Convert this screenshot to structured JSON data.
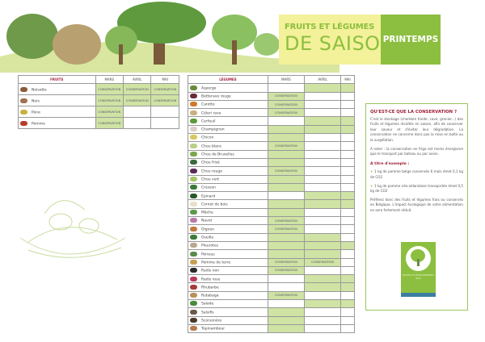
{
  "header": {
    "title_line1": "FRUITS ET LÉGUMES",
    "title_line2": "DE SAISON",
    "season": "PRINTEMPS"
  },
  "colors": {
    "accent": "#8cbf3f",
    "fill": "#cfe3a4",
    "heading": "#a0203a"
  },
  "fruits": {
    "header": [
      "FRUITS",
      "MARS",
      "AVRIL",
      "MAI"
    ],
    "rows": [
      {
        "name": "Noisette",
        "color": "#8a5a3a",
        "cells": [
          "CONSERVATION",
          "CONSERVATION",
          "CONSERVATION"
        ]
      },
      {
        "name": "Noix",
        "color": "#a07050",
        "cells": [
          "CONSERVATION",
          "CONSERVATION",
          "CONSERVATION"
        ]
      },
      {
        "name": "Poire",
        "color": "#c9b040",
        "cells": [
          "CONSERVATION",
          "",
          ""
        ]
      },
      {
        "name": "Pomme",
        "color": "#b83a2a",
        "cells": [
          "CONSERVATION",
          "",
          ""
        ]
      }
    ]
  },
  "vegetables": {
    "header": [
      "LÉGUMES",
      "MARS",
      "AVRIL",
      "MAI"
    ],
    "rows": [
      {
        "name": "Asperge",
        "color": "#6a8a3a",
        "cells": [
          "",
          "G",
          "G"
        ]
      },
      {
        "name": "Betterave rouge",
        "color": "#6a2a3a",
        "cells": [
          "CONSERVATION",
          "",
          ""
        ]
      },
      {
        "name": "Carotte",
        "color": "#d07a2a",
        "cells": [
          "CONSERVATION",
          "",
          ""
        ]
      },
      {
        "name": "Céleri rave",
        "color": "#c8b080",
        "cells": [
          "CONSERVATION",
          "",
          ""
        ]
      },
      {
        "name": "Cerfeuil",
        "color": "#5a9a3a",
        "cells": [
          "",
          "G",
          "G"
        ]
      },
      {
        "name": "Champignon",
        "color": "#d8d0c8",
        "cells": [
          "G",
          "G",
          "G"
        ]
      },
      {
        "name": "Chicon",
        "color": "#d8c860",
        "cells": [
          "G",
          "",
          ""
        ]
      },
      {
        "name": "Chou blanc",
        "color": "#b8d088",
        "cells": [
          "CONSERVATION",
          "",
          ""
        ]
      },
      {
        "name": "Chou de Bruxelles",
        "color": "#7aa84a",
        "cells": [
          "G",
          "",
          ""
        ]
      },
      {
        "name": "Chou frisé",
        "color": "#3a6a3a",
        "cells": [
          "G",
          "",
          ""
        ]
      },
      {
        "name": "Chou rouge",
        "color": "#5a2a5a",
        "cells": [
          "CONSERVATION",
          "",
          ""
        ]
      },
      {
        "name": "Chou vert",
        "color": "#a8c868",
        "cells": [
          "G",
          "",
          ""
        ]
      },
      {
        "name": "Cresson",
        "color": "#3a7a3a",
        "cells": [
          "G",
          "",
          ""
        ]
      },
      {
        "name": "Epinard",
        "color": "#2a5a2a",
        "cells": [
          "",
          "G",
          "G"
        ]
      },
      {
        "name": "Cornet de bois",
        "color": "#e8e0c8",
        "cells": [
          "G",
          "G",
          "G"
        ]
      },
      {
        "name": "Mâche",
        "color": "#5a9a4a",
        "cells": [
          "G",
          "",
          ""
        ]
      },
      {
        "name": "Navet",
        "color": "#b87aa8",
        "cells": [
          "CONSERVATION",
          "",
          ""
        ]
      },
      {
        "name": "Oignon",
        "color": "#c07a3a",
        "cells": [
          "CONSERVATION",
          "",
          ""
        ]
      },
      {
        "name": "Oseille",
        "color": "#3a7a3a",
        "cells": [
          "G",
          "G",
          ""
        ]
      },
      {
        "name": "Pleurotes",
        "color": "#b8a890",
        "cells": [
          "G",
          "G",
          "G"
        ]
      },
      {
        "name": "Poireau",
        "color": "#5a8a4a",
        "cells": [
          "G",
          "G",
          ""
        ]
      },
      {
        "name": "Pomme de terre",
        "color": "#c8a050",
        "cells": [
          "CONSERVATION",
          "CONSERVATION",
          ""
        ]
      },
      {
        "name": "Radis noir",
        "color": "#2a2a2a",
        "cells": [
          "CONSERVATION",
          "",
          ""
        ]
      },
      {
        "name": "Radis rose",
        "color": "#b83a5a",
        "cells": [
          "",
          "G",
          "G"
        ]
      },
      {
        "name": "Rhubarbe",
        "color": "#a83a3a",
        "cells": [
          "",
          "G",
          "G"
        ]
      },
      {
        "name": "Rutabaga",
        "color": "#b8905a",
        "cells": [
          "CONSERVATION",
          "",
          ""
        ]
      },
      {
        "name": "Salade",
        "color": "#4a8a3a",
        "cells": [
          "",
          "G",
          "G"
        ]
      },
      {
        "name": "Salsifis",
        "color": "#6a5a4a",
        "cells": [
          "G",
          "",
          ""
        ]
      },
      {
        "name": "Scorsonère",
        "color": "#4a3a2a",
        "cells": [
          "G",
          "",
          ""
        ]
      },
      {
        "name": "Topinambour",
        "color": "#b87a4a",
        "cells": [
          "G",
          "",
          ""
        ]
      }
    ]
  },
  "info": {
    "title": "QU'EST-CE QUE LA CONSERVATION ?",
    "p1": "C'est le stockage (chambre froide, cave, grenier...) des fruits et légumes récoltés en saison, afin de conserver leur saveur et d'éviter leur dégradation. La conservation ne concerne donc pas la mise en boîte ou la surgélation.",
    "p2": "A noter : la conservation en frigo est moins énergivore que le transport par bateau ou par avion.",
    "example_title": "A titre d'exemple :",
    "ex1": "1 kg de pomme belge conservée 6 mois émet 0,1 kg de CO2",
    "ex2": "1 kg de pomme néo-zélandaise transportée émet 0,5 kg de CO2",
    "p3": "Préférez donc des fruits et légumes frais ou conservés en Belgique. L'impact écologique de votre alimentation en sera fortement réduit."
  },
  "logo": {
    "text": "BRUXELLES ENVIRONNEMENT",
    "sub": "IBGE"
  }
}
